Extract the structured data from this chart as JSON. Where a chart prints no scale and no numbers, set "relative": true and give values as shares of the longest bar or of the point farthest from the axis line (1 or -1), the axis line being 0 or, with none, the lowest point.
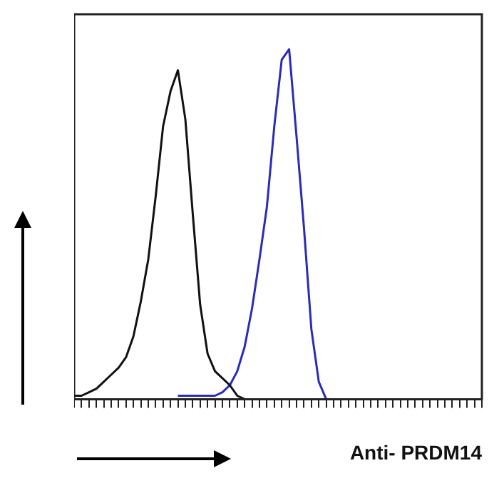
{
  "chart_data": {
    "type": "line",
    "relative": true,
    "xlabel": "Anti- PRDM14",
    "categories": [
      null,
      null,
      null,
      null,
      null,
      null,
      null,
      null,
      null,
      null,
      null,
      null,
      null,
      null,
      null,
      null,
      null,
      null,
      null,
      null,
      null,
      null,
      null,
      null,
      null,
      null,
      null,
      null,
      null,
      null,
      null,
      null,
      null,
      null,
      null,
      null,
      null,
      null,
      null,
      null,
      null,
      null,
      null,
      null,
      null,
      null,
      null,
      null,
      null,
      null,
      null,
      null,
      null,
      null,
      null,
      null
    ],
    "series": [
      {
        "color": "#111111",
        "values": [
          0.01,
          0.01,
          0.02,
          0.03,
          0.05,
          0.07,
          0.09,
          0.12,
          0.18,
          0.28,
          0.4,
          0.58,
          0.78,
          0.88,
          0.94,
          0.8,
          0.53,
          0.27,
          0.13,
          0.08,
          0.06,
          0.04,
          0.01,
          0,
          null,
          null,
          null,
          null,
          null,
          null,
          null,
          null,
          null,
          null,
          null,
          null,
          null,
          null,
          null,
          null,
          null,
          null,
          null,
          null,
          null,
          null,
          null,
          null,
          null,
          null,
          null,
          null,
          null,
          null,
          null,
          null
        ]
      },
      {
        "color": "#2b2bb5",
        "values": [
          null,
          null,
          null,
          null,
          null,
          null,
          null,
          null,
          null,
          null,
          null,
          null,
          null,
          null,
          0.01,
          0.01,
          0.01,
          0.01,
          0.01,
          0.01,
          0.02,
          0.04,
          0.08,
          0.15,
          0.26,
          0.4,
          0.55,
          0.78,
          0.97,
          1,
          0.75,
          0.49,
          0.2,
          0.05,
          0,
          0,
          null,
          null,
          null,
          null,
          null,
          null,
          null,
          null,
          null,
          null,
          null,
          null,
          null,
          null,
          null,
          null,
          null,
          null,
          null,
          null
        ]
      }
    ]
  }
}
